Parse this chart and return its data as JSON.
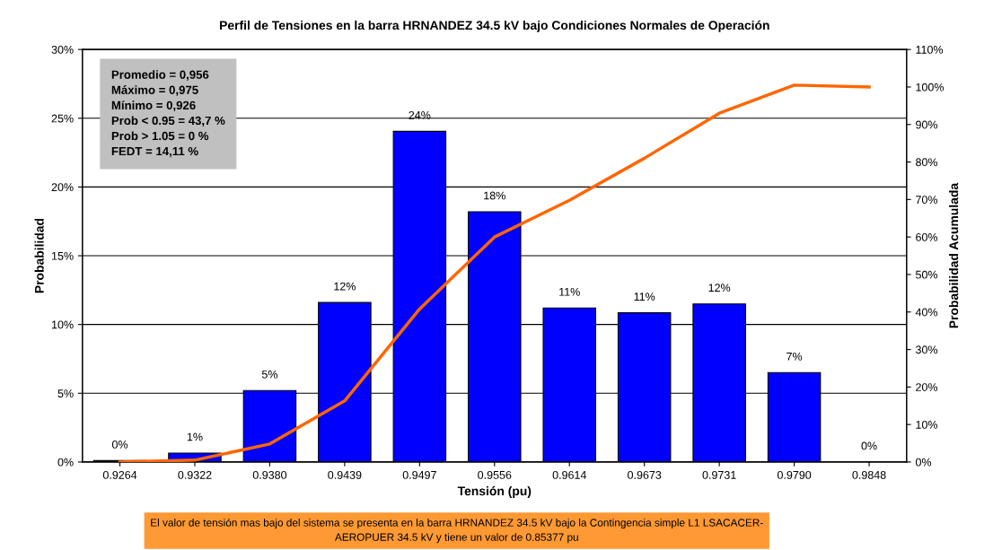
{
  "chart_data": {
    "type": "bar",
    "title": "Perfil de Tensiones en la barra HRNANDEZ 34.5 kV bajo Condiciones Normales de Operación",
    "xlabel": "Tensión (pu)",
    "ylabel": "Probabilidad",
    "y2label": "Probabilidad Acumulada",
    "categories": [
      "0.9264",
      "0.9322",
      "0.9380",
      "0.9439",
      "0.9497",
      "0.9556",
      "0.9614",
      "0.9673",
      "0.9731",
      "0.9790",
      "0.9848"
    ],
    "series": [
      {
        "color": "#0000ff",
        "values": [
          0.1,
          0.65,
          5.2,
          11.6,
          24.05,
          18.2,
          11.2,
          10.85,
          11.5,
          6.5,
          0
        ],
        "value_labels": [
          "0%",
          "1%",
          "5%",
          "12%",
          "24%",
          "18%",
          "11%",
          "11%",
          "12%",
          "7%",
          "0%"
        ]
      },
      {
        "type": "line",
        "axis": "y2",
        "color": "#ff6600",
        "values": [
          0,
          0.5,
          4.8,
          16.3,
          40.8,
          60,
          69.8,
          81,
          93,
          100.5,
          100
        ]
      }
    ],
    "ylim": [
      0,
      30
    ],
    "yticks": [
      {
        "value": 0,
        "label": "0%"
      },
      {
        "value": 5,
        "label": "5%"
      },
      {
        "value": 10,
        "label": "10%"
      },
      {
        "value": 15,
        "label": "15%"
      },
      {
        "value": 20,
        "label": "20%"
      },
      {
        "value": 25,
        "label": "25%"
      },
      {
        "value": 30,
        "label": "30%"
      }
    ],
    "y2lim": [
      0,
      110
    ],
    "y2ticks": [
      {
        "value": 0,
        "label": "0%"
      },
      {
        "value": 10,
        "label": "10%"
      },
      {
        "value": 20,
        "label": "20%"
      },
      {
        "value": 30,
        "label": "30%"
      },
      {
        "value": 40,
        "label": "40%"
      },
      {
        "value": 50,
        "label": "50%"
      },
      {
        "value": 60,
        "label": "60%"
      },
      {
        "value": 70,
        "label": "70%"
      },
      {
        "value": 80,
        "label": "80%"
      },
      {
        "value": 90,
        "label": "90%"
      },
      {
        "value": 100,
        "label": "100%"
      },
      {
        "value": 110,
        "label": "110%"
      }
    ],
    "grid": "y",
    "legend": false,
    "annotations": [
      "Promedio = 0,956\nMáximo = 0,975\nMínimo = 0,926\nProb < 0.95 = 43,7 %\nProb > 1.05 = 0 %\nFEDT = 14,11 %",
      "El valor de tensión mas bajo del sistema se presenta en la barra HRNANDEZ 34.5 kV bajo la Contingencia simple L1 LSACACER-\nAEROPUER 34.5 kV y tiene un valor de 0.85377 pu"
    ]
  }
}
